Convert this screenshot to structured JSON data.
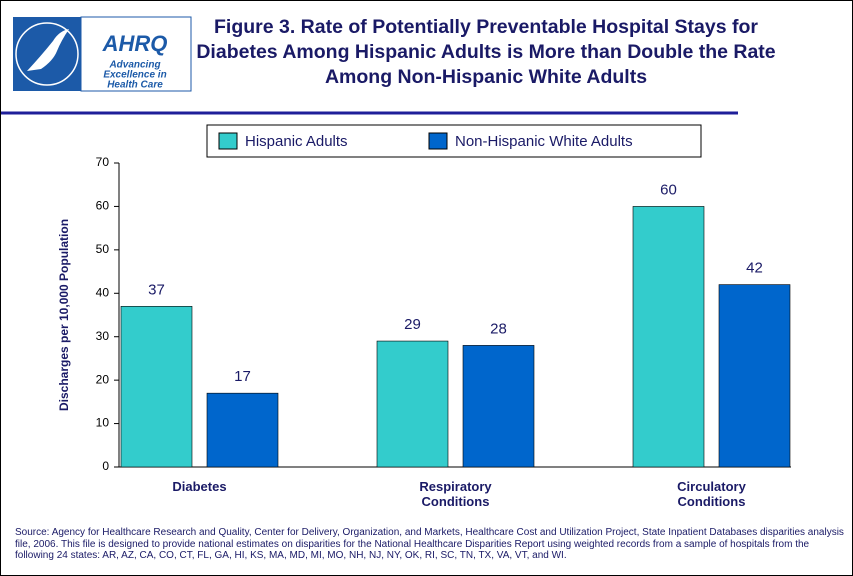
{
  "logo": {
    "name": "AHRQ",
    "tagline": [
      "Advancing",
      "Excellence in",
      "Health Care"
    ]
  },
  "chart_data": {
    "type": "bar",
    "title": "Figure 3. Rate of Potentially Preventable Hospital Stays for Diabetes Among Hispanic Adults is More than Double the Rate Among Non-Hispanic White Adults",
    "y_label": "Discharges per 10,000 Population",
    "categories": [
      "Diabetes",
      "Respiratory Conditions",
      "Circulatory Conditions"
    ],
    "series": [
      {
        "name": "Hispanic Adults",
        "color": "#33cccc",
        "values": [
          37,
          29,
          60
        ]
      },
      {
        "name": "Non-Hispanic White Adults",
        "color": "#0066cc",
        "values": [
          17,
          28,
          42
        ]
      }
    ],
    "ylim": [
      0,
      70
    ],
    "yticks": [
      0,
      10,
      20,
      30,
      40,
      50,
      60,
      70
    ],
    "grid": false,
    "source": "Source: Agency for Healthcare Research and Quality, Center for Delivery, Organization, and Markets, Healthcare Cost and Utilization Project, State Inpatient Databases disparities analysis file, 2006. This file is designed to provide national estimates on disparities for the National Healthcare Disparities Report using weighted records from a sample of hospitals from the following 24 states: AR, AZ, CA, CO, CT, FL, GA, HI, KS, MA, MD, MI, MO, NH, NJ, NY, OK, RI, SC, TN, TX, VA, VT, and WI."
  }
}
